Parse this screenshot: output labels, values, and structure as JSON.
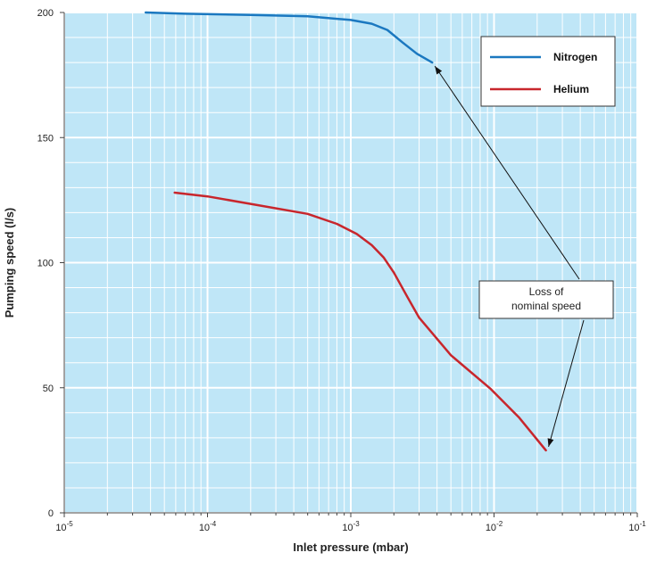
{
  "chart_data": {
    "type": "line",
    "title": "",
    "xlabel": "Inlet pressure (mbar)",
    "ylabel": "Pumping speed (l/s)",
    "x_scale": "log",
    "xlim": [
      1e-05,
      0.1
    ],
    "ylim": [
      0,
      200
    ],
    "x_ticks": [
      {
        "value": 1e-05,
        "base": "10",
        "exp": "-5"
      },
      {
        "value": 0.0001,
        "base": "10",
        "exp": "-4"
      },
      {
        "value": 0.001,
        "base": "10",
        "exp": "-3"
      },
      {
        "value": 0.01,
        "base": "10",
        "exp": "-2"
      },
      {
        "value": 0.1,
        "base": "10",
        "exp": "-1"
      }
    ],
    "y_ticks": [
      {
        "value": 0,
        "label": "0"
      },
      {
        "value": 50,
        "label": "50"
      },
      {
        "value": 100,
        "label": "100"
      },
      {
        "value": 150,
        "label": "150"
      },
      {
        "value": 200,
        "label": "200"
      }
    ],
    "grid": true,
    "background_color": "#bfe6f7",
    "legend_position": "top-right",
    "series": [
      {
        "name": "Nitrogen",
        "color": "#1b78c0",
        "points": [
          [
            3.7e-05,
            200
          ],
          [
            7e-05,
            199.5
          ],
          [
            0.0002,
            199
          ],
          [
            0.0005,
            198.5
          ],
          [
            0.001,
            197
          ],
          [
            0.0014,
            195.5
          ],
          [
            0.0018,
            193
          ],
          [
            0.0023,
            188
          ],
          [
            0.0029,
            183.5
          ],
          [
            0.0037,
            180
          ]
        ]
      },
      {
        "name": "Helium",
        "color": "#c8262c",
        "points": [
          [
            5.9e-05,
            128
          ],
          [
            0.0001,
            126.5
          ],
          [
            0.0002,
            123.5
          ],
          [
            0.0005,
            119.5
          ],
          [
            0.0008,
            115.5
          ],
          [
            0.0011,
            111.5
          ],
          [
            0.0014,
            107
          ],
          [
            0.0017,
            102
          ],
          [
            0.002,
            96
          ],
          [
            0.0025,
            86
          ],
          [
            0.003,
            78
          ],
          [
            0.005,
            63
          ],
          [
            0.0095,
            49.5
          ],
          [
            0.015,
            38
          ],
          [
            0.023,
            25
          ]
        ]
      }
    ],
    "annotation": {
      "lines": [
        "Loss of",
        "nominal speed"
      ],
      "arrow_targets": [
        [
          0.0037,
          180
        ],
        [
          0.023,
          25
        ]
      ]
    }
  }
}
